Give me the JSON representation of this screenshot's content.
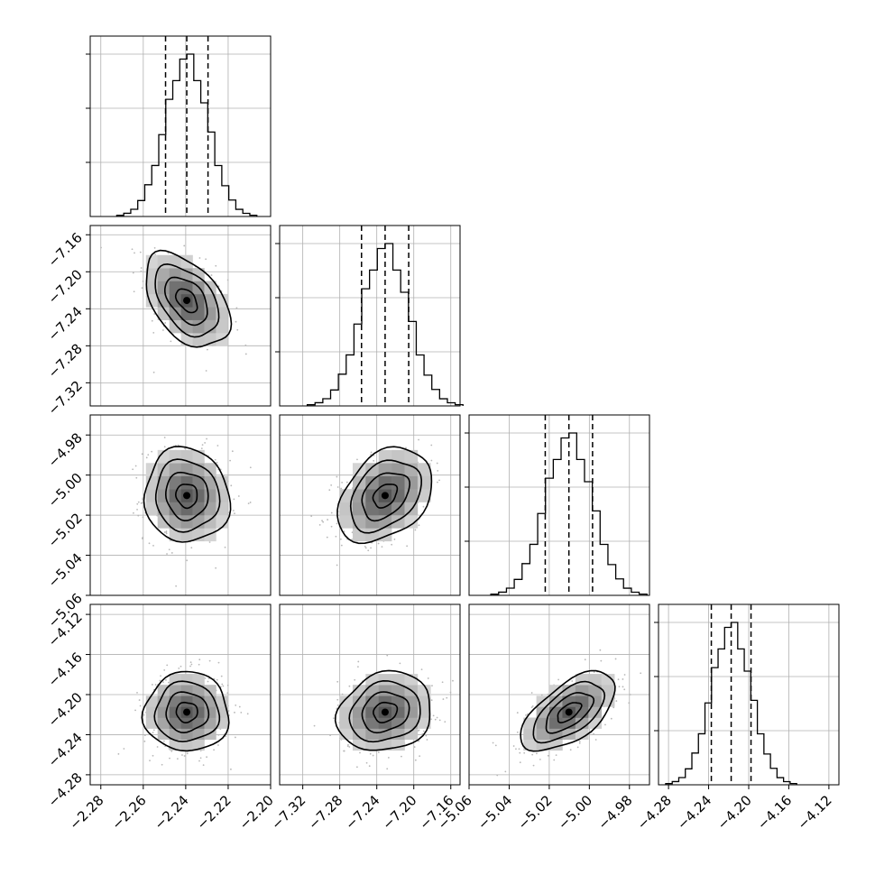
{
  "chart_data": {
    "type": "corner",
    "parameters": [
      {
        "center": -2.2395,
        "sigma": 0.01,
        "q16": -2.2495,
        "q50": -2.2395,
        "q84": -2.2295,
        "range": [
          -2.285,
          -2.2
        ],
        "ticks": [
          -2.28,
          -2.26,
          -2.24,
          -2.22,
          -2.2
        ],
        "tick_labels": [
          "−2.28",
          "−2.26",
          "−2.24",
          "−2.22",
          "−2.20"
        ]
      },
      {
        "center": -7.231,
        "sigma": 0.0255,
        "q16": -7.2565,
        "q50": -7.231,
        "q84": -7.2055,
        "range": [
          -7.345,
          -7.15
        ],
        "ticks": [
          -7.32,
          -7.28,
          -7.24,
          -7.2,
          -7.16
        ],
        "tick_labels": [
          "−7.32",
          "−7.28",
          "−7.24",
          "−7.20",
          "−7.16"
        ]
      },
      {
        "center": -5.0102,
        "sigma": 0.0118,
        "q16": -5.022,
        "q50": -5.0102,
        "q84": -4.9984,
        "range": [
          -5.06,
          -4.97
        ],
        "ticks": [
          -5.06,
          -5.04,
          -5.02,
          -5.0,
          -4.98
        ],
        "tick_labels": [
          "−5.06",
          "−5.04",
          "−5.02",
          "−5.00",
          "−4.98"
        ]
      },
      {
        "center": -4.2175,
        "sigma": 0.0198,
        "q16": -4.2373,
        "q50": -4.2175,
        "q84": -4.1977,
        "range": [
          -4.29,
          -4.11
        ],
        "ticks": [
          -4.28,
          -4.24,
          -4.2,
          -4.16,
          -4.12
        ],
        "tick_labels": [
          "−4.28",
          "−4.24",
          "−4.20",
          "−4.16",
          "−4.12"
        ]
      }
    ],
    "correlations": {
      "1-0": -0.45,
      "2-0": -0.05,
      "2-1": 0.35,
      "3-0": 0.0,
      "3-1": 0.15,
      "3-2": 0.6
    },
    "histogram_bins": 20,
    "contour_levels": [
      0.118,
      0.393,
      0.675,
      0.864
    ],
    "grid": true,
    "title": "",
    "xlabel": "",
    "ylabel": ""
  }
}
